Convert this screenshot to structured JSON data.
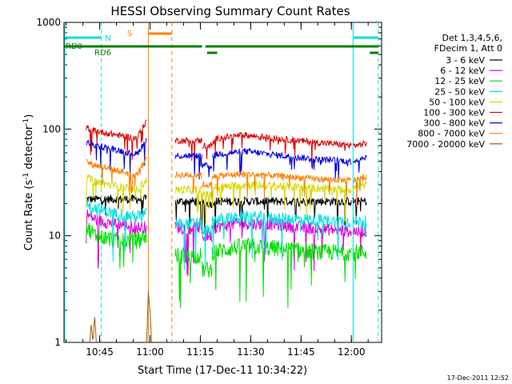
{
  "chart_data": {
    "type": "line",
    "title": "HESSI Observing Summary Count Rates",
    "xlabel": "Start Time (17-Dec-11 10:34:22)",
    "ylabel": "Count Rate (s",
    "ylabel_sup1": "-1",
    "ylabel_mid": " detector",
    "ylabel_sup2": "-1",
    "ylabel_end": ")",
    "y_scale": "log",
    "ylim": [
      1,
      1000
    ],
    "xlim_minutes": [
      34.37,
      129.0
    ],
    "x_ticks": [
      {
        "minute": 45,
        "label": "10:45"
      },
      {
        "minute": 60,
        "label": "11:00"
      },
      {
        "minute": 75,
        "label": "11:15"
      },
      {
        "minute": 90,
        "label": "11:30"
      },
      {
        "minute": 105,
        "label": "11:45"
      },
      {
        "minute": 120,
        "label": "12:00"
      }
    ],
    "y_ticks": [
      {
        "value": 1,
        "label": "1"
      },
      {
        "value": 10,
        "label": "10"
      },
      {
        "value": 100,
        "label": "100"
      },
      {
        "value": 1000,
        "label": "1000"
      }
    ],
    "legend": {
      "header": [
        "Det 1,3,4,5,6,",
        "FDecim 1, Att 0"
      ],
      "placement": "right",
      "entries": [
        {
          "label": "3 - 6 keV",
          "color": "#000000"
        },
        {
          "label": "6 - 12 keV",
          "color": "#e000e0"
        },
        {
          "label": "12 - 25 keV",
          "color": "#00e000"
        },
        {
          "label": "25 - 50 keV",
          "color": "#00e0e0"
        },
        {
          "label": "50 - 100 keV",
          "color": "#d8d800"
        },
        {
          "label": "100 - 300 keV",
          "color": "#e00000"
        },
        {
          "label": "300 - 800 keV",
          "color": "#0000e0"
        },
        {
          "label": "800 - 7000 keV",
          "color": "#ff8000"
        },
        {
          "label": "7000 - 20000 keV",
          "color": "#a06000"
        }
      ]
    },
    "flags": [
      {
        "label": "N",
        "color": "#00e0e0",
        "segments": [
          [
            34.5,
            45.5
          ],
          [
            120.5,
            128.0
          ]
        ]
      },
      {
        "label": "S",
        "color": "#ff8000",
        "segments": [
          [
            59.5,
            66.5
          ]
        ]
      },
      {
        "label": "RD0",
        "color": "#008000",
        "segments": [
          [
            34.5,
            75.5
          ],
          [
            76.5,
            128.0
          ]
        ]
      },
      {
        "label": "RD6",
        "color": "#008000",
        "segments": [
          [
            77.0,
            80.0
          ],
          [
            125.5,
            128.0
          ]
        ]
      }
    ],
    "vlines": [
      {
        "minute": 34.6,
        "color": "#00e0e0",
        "style": "solid"
      },
      {
        "minute": 45.5,
        "color": "#00e0e0",
        "style": "dashed"
      },
      {
        "minute": 59.5,
        "color": "#ff8000",
        "style": "solid"
      },
      {
        "minute": 66.5,
        "color": "#ff8000",
        "style": "dashed"
      },
      {
        "minute": 120.5,
        "color": "#00e0e0",
        "style": "solid"
      },
      {
        "minute": 128.0,
        "color": "#00e0e0",
        "style": "dashed"
      }
    ],
    "series": [
      {
        "name": "3 - 6 keV",
        "color": "#000000",
        "noise": 0.04,
        "segments": [
          {
            "x": [
              41.0,
              50.0,
              56.0,
              59.0
            ],
            "y": [
              22,
              22,
              22,
              22
            ]
          },
          {
            "x": [
              67.5,
              75.5
            ],
            "y": [
              21,
              21
            ]
          },
          {
            "x": [
              75.5,
              78.5
            ],
            "y": [
              20,
              20
            ]
          },
          {
            "x": [
              78.5,
              90.0,
              105.0,
              120.0
            ],
            "y": [
              21,
              21,
              21,
              21
            ]
          },
          {
            "x": [
              120.5,
              124.5
            ],
            "y": [
              21,
              21
            ]
          }
        ]
      },
      {
        "name": "6 - 12 keV",
        "color": "#e000e0",
        "noise": 0.06,
        "segments": [
          {
            "x": [
              41.0,
              44.0,
              50.0,
              56.0,
              59.0
            ],
            "y": [
              16,
              14,
              13,
              12,
              12
            ]
          },
          {
            "x": [
              67.5,
              75.5
            ],
            "y": [
              12,
              12
            ]
          },
          {
            "x": [
              75.5,
              78.5
            ],
            "y": [
              10,
              10
            ]
          },
          {
            "x": [
              78.5,
              86.0,
              95.0,
              105.0,
              120.0
            ],
            "y": [
              12,
              13,
              13,
              12,
              11
            ]
          },
          {
            "x": [
              120.5,
              124.5
            ],
            "y": [
              11,
              11
            ]
          }
        ]
      },
      {
        "name": "12 - 25 keV",
        "color": "#00e000",
        "noise": 0.08,
        "segments": [
          {
            "x": [
              41.0,
              44.0,
              50.0,
              56.0,
              59.0
            ],
            "y": [
              12,
              10,
              9,
              9,
              10
            ]
          },
          {
            "x": [
              67.5,
              75.5
            ],
            "y": [
              6.5,
              6.5
            ]
          },
          {
            "x": [
              75.5,
              78.5
            ],
            "y": [
              4.8,
              4.8
            ]
          },
          {
            "x": [
              78.5,
              88.0,
              100.0,
              110.0,
              120.0
            ],
            "y": [
              7,
              8,
              7.5,
              7,
              7
            ]
          },
          {
            "x": [
              120.5,
              124.5
            ],
            "y": [
              7,
              7
            ]
          }
        ]
      },
      {
        "name": "25 - 50 keV",
        "color": "#00e0e0",
        "noise": 0.06,
        "segments": [
          {
            "x": [
              41.0,
              44.0,
              50.0,
              56.0,
              59.0
            ],
            "y": [
              20,
              18,
              16,
              15,
              16
            ]
          },
          {
            "x": [
              67.5,
              75.5
            ],
            "y": [
              13,
              13
            ]
          },
          {
            "x": [
              75.5,
              78.5
            ],
            "y": [
              11,
              11
            ]
          },
          {
            "x": [
              78.5,
              88.0,
              100.0,
              110.0,
              120.0
            ],
            "y": [
              14,
              15,
              14.5,
              14,
              13.5
            ]
          },
          {
            "x": [
              120.5,
              124.5
            ],
            "y": [
              13.5,
              13.5
            ]
          }
        ]
      },
      {
        "name": "50 - 100 keV",
        "color": "#d8d800",
        "noise": 0.04,
        "segments": [
          {
            "x": [
              41.0,
              44.0,
              50.0,
              56.0,
              59.0
            ],
            "y": [
              35,
              32,
              29,
              27,
              33
            ]
          },
          {
            "x": [
              67.5,
              75.5
            ],
            "y": [
              27,
              27
            ]
          },
          {
            "x": [
              75.5,
              78.5
            ],
            "y": [
              24,
              24
            ]
          },
          {
            "x": [
              78.5,
              88.0,
              100.0,
              110.0,
              120.0
            ],
            "y": [
              28,
              30,
              29,
              28,
              27
            ]
          },
          {
            "x": [
              120.5,
              124.5
            ],
            "y": [
              28,
              30
            ]
          }
        ]
      },
      {
        "name": "100 - 300 keV",
        "color": "#e00000",
        "noise": 0.03,
        "segments": [
          {
            "x": [
              41.0,
              42.5,
              50.0,
              56.0,
              59.0
            ],
            "y": [
              103,
              98,
              88,
              82,
              120
            ]
          },
          {
            "x": [
              67.5,
              75.5
            ],
            "y": [
              78,
              78
            ]
          },
          {
            "x": [
              75.5,
              78.5
            ],
            "y": [
              70,
              70
            ]
          },
          {
            "x": [
              78.5,
              80.0,
              88.0,
              100.0,
              110.0,
              120.0
            ],
            "y": [
              72,
              82,
              88,
              80,
              75,
              70
            ]
          },
          {
            "x": [
              120.5,
              124.5
            ],
            "y": [
              70,
              73
            ]
          }
        ]
      },
      {
        "name": "300 - 800 keV",
        "color": "#0000e0",
        "noise": 0.03,
        "segments": [
          {
            "x": [
              41.0,
              42.5,
              50.0,
              56.0,
              59.0
            ],
            "y": [
              75,
              72,
              64,
              58,
              80
            ]
          },
          {
            "x": [
              67.5,
              75.5
            ],
            "y": [
              56,
              56
            ]
          },
          {
            "x": [
              75.5,
              78.5
            ],
            "y": [
              45,
              45
            ]
          },
          {
            "x": [
              78.5,
              80.0,
              88.0,
              100.0,
              110.0,
              120.0
            ],
            "y": [
              55,
              58,
              62,
              56,
              52,
              50
            ]
          },
          {
            "x": [
              120.5,
              124.5
            ],
            "y": [
              50,
              55
            ]
          }
        ]
      },
      {
        "name": "800 - 7000 keV",
        "color": "#ff8000",
        "noise": 0.03,
        "segments": [
          {
            "x": [
              41.0,
              42.5,
              50.0,
              56.0,
              59.0
            ],
            "y": [
              50,
              47,
              41,
              37,
              55
            ]
          },
          {
            "x": [
              67.5,
              75.5
            ],
            "y": [
              37,
              37
            ]
          },
          {
            "x": [
              75.5,
              78.5
            ],
            "y": [
              30,
              30
            ]
          },
          {
            "x": [
              78.5,
              88.0,
              100.0,
              110.0,
              120.0
            ],
            "y": [
              36,
              38,
              36,
              34,
              33
            ]
          },
          {
            "x": [
              120.5,
              124.5
            ],
            "y": [
              33,
              36
            ]
          }
        ]
      },
      {
        "name": "7000 - 20000 keV",
        "color": "#a06000",
        "noise": 0.0,
        "segments": [
          {
            "x": [
              42.0,
              42.5,
              43.0,
              43.5,
              44.0
            ],
            "y": [
              1.0,
              1.5,
              1.0,
              1.8,
              1.0
            ]
          },
          {
            "x": [
              59.0,
              59.5,
              60.0,
              60.5
            ],
            "y": [
              1.0,
              3.0,
              2.0,
              1.0
            ]
          }
        ]
      }
    ]
  },
  "footer": {
    "timestamp": "17-Dec-2011 12:52"
  }
}
